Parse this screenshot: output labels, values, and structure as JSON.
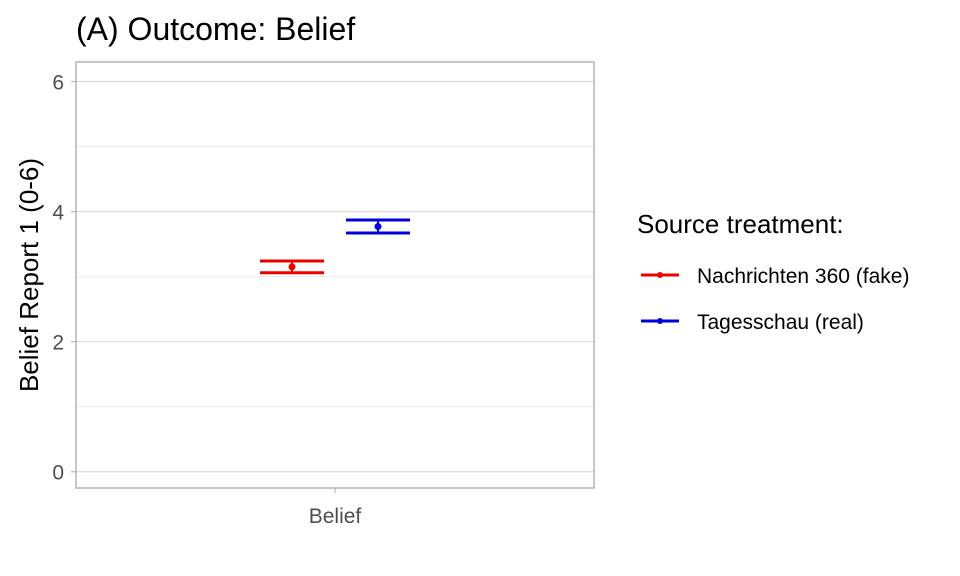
{
  "chart_data": {
    "type": "errorbar",
    "title": "(A) Outcome: Belief",
    "xlabel": "",
    "ylabel": "Belief Report 1 (0-6)",
    "categories": [
      "Belief"
    ],
    "ylim": [
      -0.25,
      6.3
    ],
    "yticks": [
      "0",
      "2",
      "4",
      "6"
    ],
    "grid": true,
    "legend": {
      "title": "Source treatment:",
      "position": "right"
    },
    "series": [
      {
        "name": "Nachrichten 360 (fake)",
        "color": "#ee0000",
        "mean": 3.15,
        "lower": 3.06,
        "upper": 3.24
      },
      {
        "name": "Tagesschau (real)",
        "color": "#0000dd",
        "mean": 3.77,
        "lower": 3.67,
        "upper": 3.87
      }
    ]
  }
}
